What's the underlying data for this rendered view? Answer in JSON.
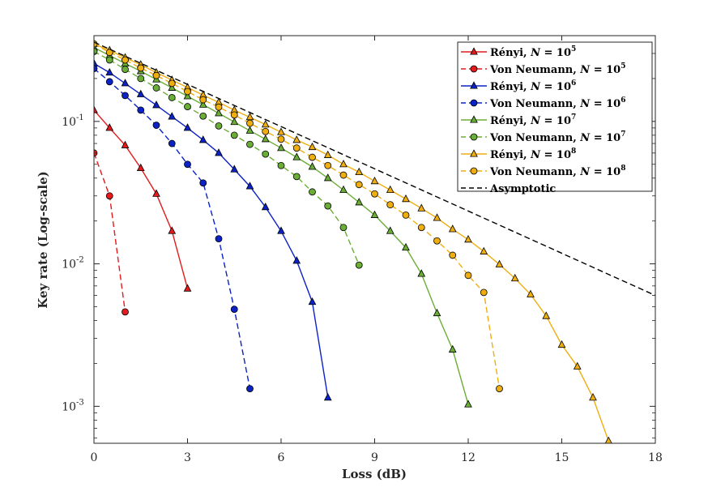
{
  "chart_data": {
    "type": "line",
    "title": "",
    "xlabel": "Loss (dB)",
    "ylabel": "Key rate (Log-scale)",
    "xlim": [
      0,
      18
    ],
    "ylim": [
      0.00055,
      0.4
    ],
    "yscale": "log",
    "grid": false,
    "legend_position": "top-right",
    "x_ticks": [
      0,
      3,
      6,
      9,
      12,
      15,
      18
    ],
    "y_ticks": [
      {
        "value": 0.1,
        "base": "10",
        "exp": "-1"
      },
      {
        "value": 0.01,
        "base": "10",
        "exp": "-2"
      },
      {
        "value": 0.001,
        "base": "10",
        "exp": "-3"
      }
    ],
    "series": [
      {
        "name": "Rényi",
        "n_label": "10",
        "n_exp": "5",
        "color": "#e41a1c",
        "dash": "solid",
        "marker": "triangle",
        "x": [
          0,
          0.5,
          1,
          1.5,
          2,
          2.5,
          3
        ],
        "y": [
          0.12,
          0.09,
          0.068,
          0.047,
          0.031,
          0.017,
          0.0067
        ]
      },
      {
        "name": "Von Neumann",
        "n_label": "10",
        "n_exp": "5",
        "color": "#e41a1c",
        "dash": "dashed",
        "marker": "circle",
        "x": [
          0,
          0.5,
          1
        ],
        "y": [
          0.06,
          0.03,
          0.0046
        ]
      },
      {
        "name": "Rényi",
        "n_label": "10",
        "n_exp": "6",
        "color": "#0b22c7",
        "dash": "solid",
        "marker": "triangle",
        "x": [
          0,
          0.5,
          1,
          1.5,
          2,
          2.5,
          3,
          3.5,
          4,
          4.5,
          5,
          5.5,
          6,
          6.5,
          7,
          7.5
        ],
        "y": [
          0.255,
          0.22,
          0.185,
          0.155,
          0.13,
          0.108,
          0.09,
          0.074,
          0.06,
          0.046,
          0.035,
          0.025,
          0.017,
          0.0105,
          0.0054,
          0.00115
        ]
      },
      {
        "name": "Von Neumann",
        "n_label": "10",
        "n_exp": "6",
        "color": "#0b22c7",
        "dash": "dashed",
        "marker": "circle",
        "x": [
          0,
          0.5,
          1,
          1.5,
          2,
          2.5,
          3,
          3.5,
          4,
          4.5,
          5
        ],
        "y": [
          0.235,
          0.19,
          0.152,
          0.12,
          0.094,
          0.07,
          0.05,
          0.037,
          0.015,
          0.0048,
          0.00133
        ]
      },
      {
        "name": "Rényi",
        "n_label": "10",
        "n_exp": "7",
        "color": "#6bae35",
        "dash": "solid",
        "marker": "triangle",
        "x": [
          0,
          0.5,
          1,
          1.5,
          2,
          2.5,
          3,
          3.5,
          4,
          4.5,
          5,
          5.5,
          6,
          6.5,
          7,
          7.5,
          8,
          8.5,
          9,
          9.5,
          10,
          10.5,
          11,
          11.5,
          12
        ],
        "y": [
          0.33,
          0.29,
          0.255,
          0.225,
          0.197,
          0.172,
          0.15,
          0.131,
          0.114,
          0.099,
          0.086,
          0.075,
          0.065,
          0.056,
          0.048,
          0.04,
          0.033,
          0.027,
          0.022,
          0.017,
          0.013,
          0.0085,
          0.0045,
          0.0025,
          0.00103
        ]
      },
      {
        "name": "Von Neumann",
        "n_label": "10",
        "n_exp": "7",
        "color": "#6bae35",
        "dash": "dashed",
        "marker": "circle",
        "x": [
          0,
          0.5,
          1,
          1.5,
          2,
          2.5,
          3,
          3.5,
          4,
          4.5,
          5,
          5.5,
          6,
          6.5,
          7,
          7.5,
          8,
          8.5
        ],
        "y": [
          0.31,
          0.27,
          0.232,
          0.2,
          0.172,
          0.147,
          0.127,
          0.109,
          0.093,
          0.08,
          0.069,
          0.059,
          0.049,
          0.041,
          0.032,
          0.0255,
          0.018,
          0.0098
        ]
      },
      {
        "name": "Rényi",
        "n_label": "10",
        "n_exp": "8",
        "color": "#eeae10",
        "dash": "solid",
        "marker": "triangle",
        "x": [
          0,
          0.5,
          1,
          1.5,
          2,
          2.5,
          3,
          3.5,
          4,
          4.5,
          5,
          5.5,
          6,
          6.5,
          7,
          7.5,
          8,
          8.5,
          9,
          9.5,
          10,
          10.5,
          11,
          11.5,
          12,
          12.5,
          13,
          13.5,
          14,
          14.5,
          15,
          15.5,
          16,
          16.5
        ],
        "y": [
          0.35,
          0.315,
          0.28,
          0.25,
          0.22,
          0.195,
          0.173,
          0.153,
          0.136,
          0.12,
          0.107,
          0.095,
          0.084,
          0.074,
          0.066,
          0.058,
          0.05,
          0.044,
          0.038,
          0.033,
          0.0285,
          0.0245,
          0.021,
          0.0175,
          0.0148,
          0.0122,
          0.0099,
          0.0079,
          0.0061,
          0.0043,
          0.0027,
          0.0019,
          0.00115,
          0.00057
        ]
      },
      {
        "name": "Von Neumann",
        "n_label": "10",
        "n_exp": "8",
        "color": "#eeae10",
        "dash": "dashed",
        "marker": "circle",
        "x": [
          0,
          0.5,
          1,
          1.5,
          2,
          2.5,
          3,
          3.5,
          4,
          4.5,
          5,
          5.5,
          6,
          6.5,
          7,
          7.5,
          8,
          8.5,
          9,
          9.5,
          10,
          10.5,
          11,
          11.5,
          12,
          12.5,
          13
        ],
        "y": [
          0.35,
          0.305,
          0.27,
          0.237,
          0.21,
          0.185,
          0.162,
          0.142,
          0.126,
          0.111,
          0.097,
          0.085,
          0.075,
          0.065,
          0.056,
          0.049,
          0.042,
          0.036,
          0.031,
          0.026,
          0.022,
          0.018,
          0.0145,
          0.0115,
          0.0083,
          0.0063,
          0.00133
        ]
      },
      {
        "name": "Asymptotic",
        "color": "#000000",
        "dash": "dashed",
        "marker": "none",
        "x": [
          0,
          18
        ],
        "y": [
          0.36,
          0.006
        ]
      }
    ]
  }
}
